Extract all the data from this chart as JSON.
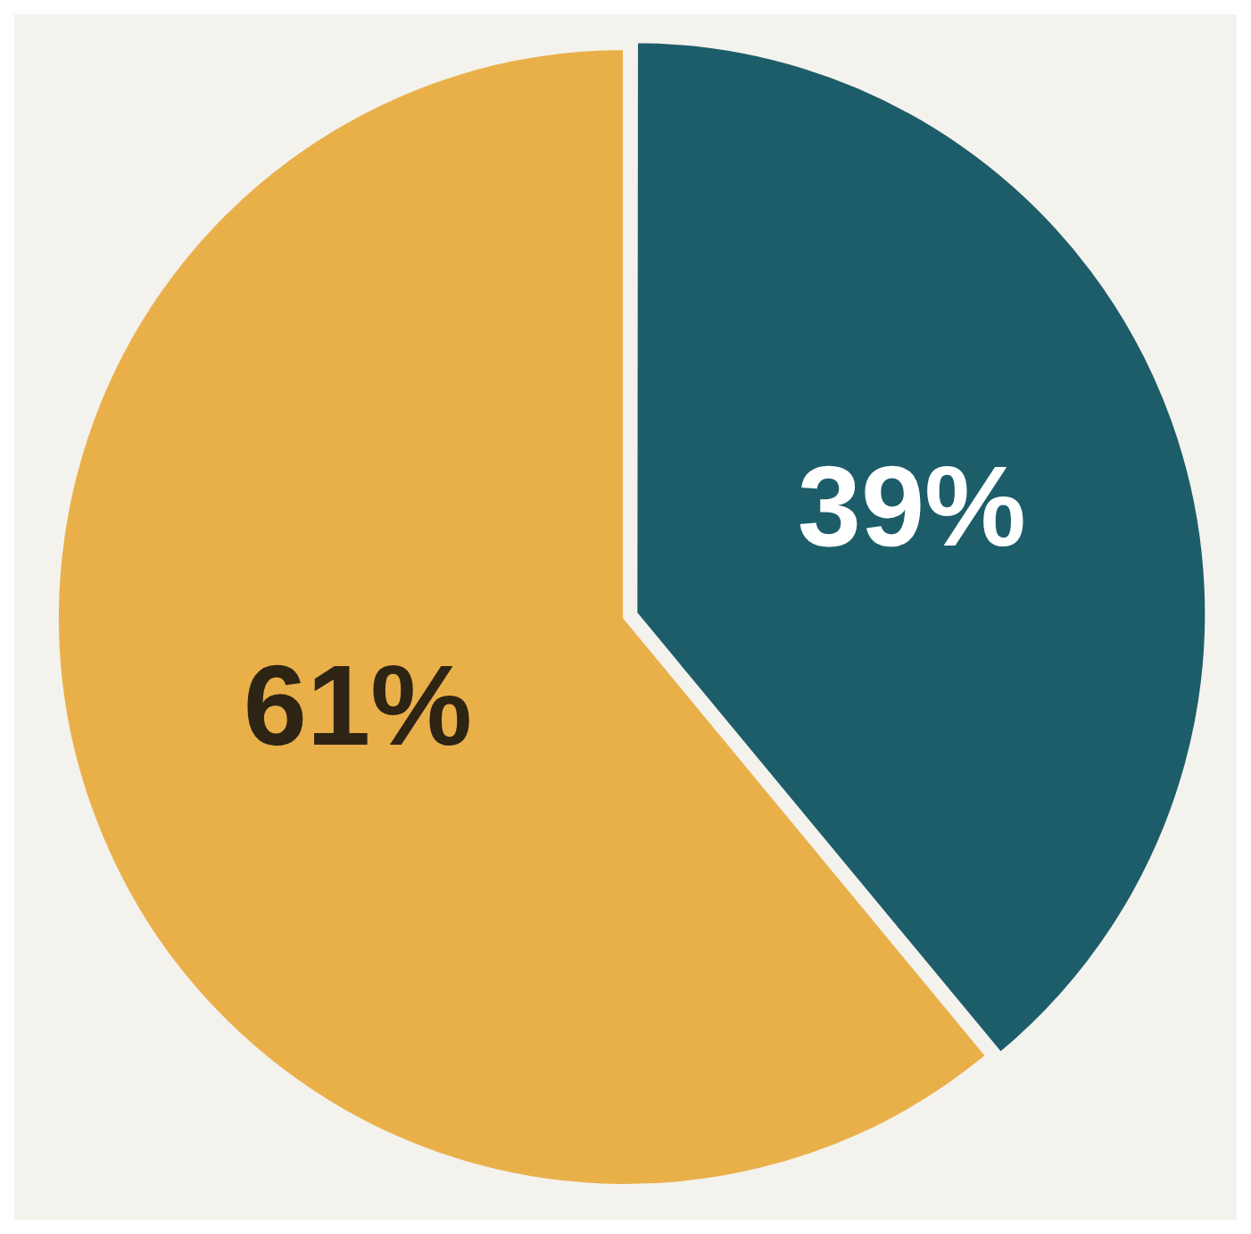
{
  "chart_data": {
    "type": "pie",
    "categories": [
      null,
      null
    ],
    "values": [
      39,
      61
    ],
    "colors": [
      "#1d5d6a",
      "#e9b04a"
    ],
    "value_labels": [
      "39%",
      "61%"
    ],
    "legend": false
  }
}
